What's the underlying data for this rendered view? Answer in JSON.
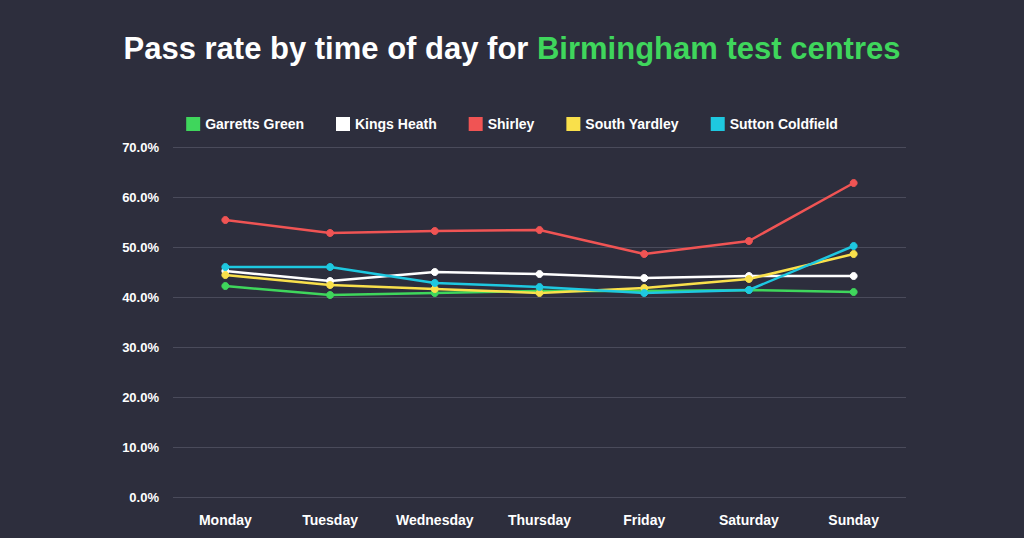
{
  "chart_data": {
    "type": "line",
    "title": "Pass rate by time of day for Birmingham test centres",
    "categories": [
      "Monday",
      "Tuesday",
      "Wednesday",
      "Thursday",
      "Friday",
      "Saturday",
      "Sunday"
    ],
    "series": [
      {
        "name": "Garretts Green",
        "color": "#3fd65c",
        "values": [
          42.2,
          40.4,
          40.8,
          41.2,
          41.2,
          41.4,
          41.0
        ]
      },
      {
        "name": "Kings Heath",
        "color": "#ffffff",
        "values": [
          45.2,
          43.2,
          45.0,
          44.6,
          43.8,
          44.2,
          44.2
        ]
      },
      {
        "name": "Shirley",
        "color": "#f05454",
        "values": [
          55.4,
          52.8,
          53.2,
          53.4,
          48.6,
          51.2,
          62.8
        ]
      },
      {
        "name": "South Yardley",
        "color": "#f9e04b",
        "values": [
          44.4,
          42.4,
          41.6,
          40.8,
          41.8,
          43.6,
          48.6
        ]
      },
      {
        "name": "Sutton Coldfield",
        "color": "#1ec8e0",
        "values": [
          46.0,
          46.0,
          42.8,
          42.0,
          40.8,
          41.4,
          50.2
        ]
      }
    ],
    "ylim": [
      0,
      70
    ],
    "yticks": [
      {
        "value": 0,
        "label": "0.0%"
      },
      {
        "value": 10,
        "label": "10.0%"
      },
      {
        "value": 20,
        "label": "20.0%"
      },
      {
        "value": 30,
        "label": "30.0%"
      },
      {
        "value": 40,
        "label": "40.0%"
      },
      {
        "value": 50,
        "label": "50.0%"
      },
      {
        "value": 60,
        "label": "60.0%"
      },
      {
        "value": 70,
        "label": "70.0%"
      }
    ],
    "grid": true,
    "legend": "top",
    "marker": "circle"
  }
}
